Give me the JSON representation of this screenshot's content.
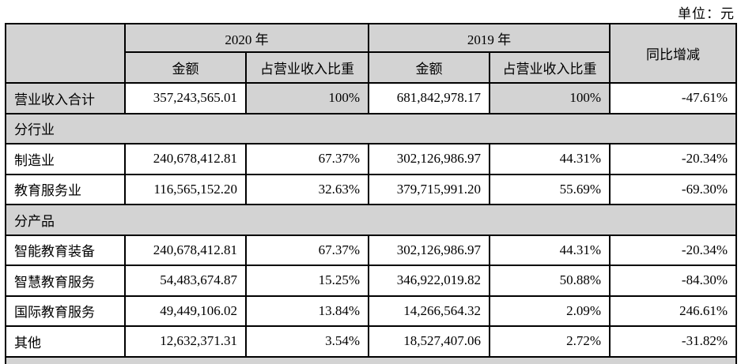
{
  "page": {
    "unit_label": "单位：元"
  },
  "colors": {
    "shaded_cell": "#d3d3d3",
    "border": "#000000",
    "background": "#ffffff",
    "text": "#000000"
  },
  "table": {
    "header": {
      "year_2020": "2020 年",
      "year_2019": "2019 年",
      "yoy": "同比增减",
      "amount": "金额",
      "pct_of_revenue": "占营业收入比重"
    },
    "rows": [
      {
        "type": "total",
        "label": "营业收入合计",
        "a2020": "357,243,565.01",
        "p2020": "100%",
        "a2019": "681,842,978.17",
        "p2019": "100%",
        "yoy": "-47.61%"
      },
      {
        "type": "section",
        "label": "分行业"
      },
      {
        "type": "data",
        "label": "制造业",
        "a2020": "240,678,412.81",
        "p2020": "67.37%",
        "a2019": "302,126,986.97",
        "p2019": "44.31%",
        "yoy": "-20.34%"
      },
      {
        "type": "data",
        "label": "教育服务业",
        "a2020": "116,565,152.20",
        "p2020": "32.63%",
        "a2019": "379,715,991.20",
        "p2019": "55.69%",
        "yoy": "-69.30%"
      },
      {
        "type": "section",
        "label": "分产品"
      },
      {
        "type": "data",
        "label": "智能教育装备",
        "a2020": "240,678,412.81",
        "p2020": "67.37%",
        "a2019": "302,126,986.97",
        "p2019": "44.31%",
        "yoy": "-20.34%"
      },
      {
        "type": "data",
        "label": "智慧教育服务",
        "a2020": "54,483,674.87",
        "p2020": "15.25%",
        "a2019": "346,922,019.82",
        "p2019": "50.88%",
        "yoy": "-84.30%"
      },
      {
        "type": "data",
        "label": "国际教育服务",
        "a2020": "49,449,106.02",
        "p2020": "13.84%",
        "a2019": "14,266,564.32",
        "p2019": "2.09%",
        "yoy": "246.61%"
      },
      {
        "type": "data",
        "label": "其他",
        "a2020": "12,632,371.31",
        "p2020": "3.54%",
        "a2019": "18,527,407.06",
        "p2019": "2.72%",
        "yoy": "-31.82%"
      },
      {
        "type": "section",
        "label": ""
      }
    ]
  }
}
